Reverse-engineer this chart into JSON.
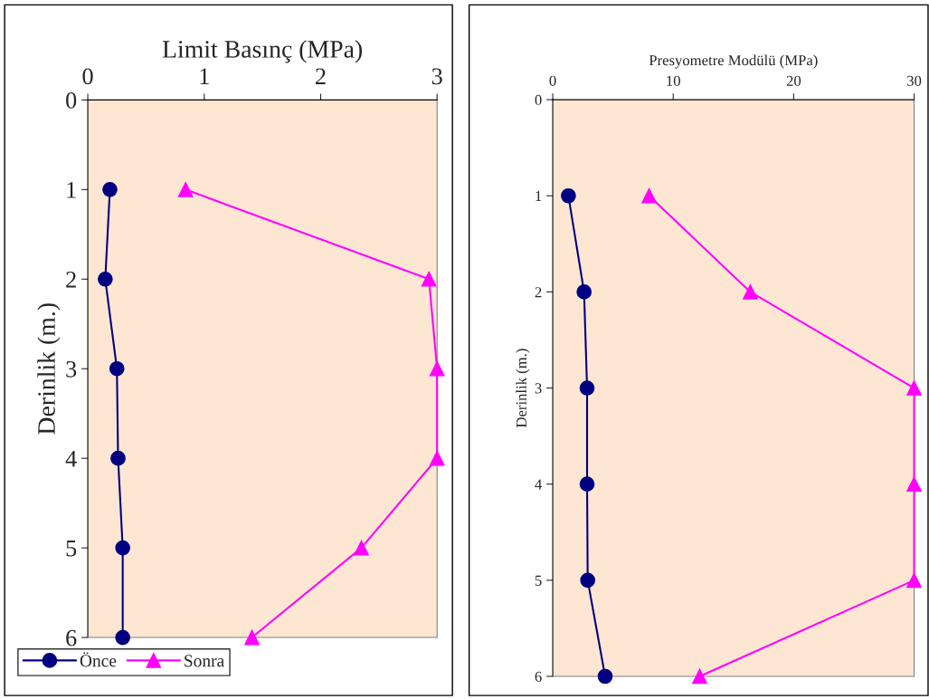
{
  "chart_data": [
    {
      "type": "line",
      "xlabel": "Limit Basınç (MPa)",
      "ylabel": "Derinlik (m.)",
      "xlim": [
        0,
        3
      ],
      "xticks": [
        0,
        1,
        2,
        3
      ],
      "ylim": [
        6,
        0
      ],
      "yticks": [
        0,
        1,
        2,
        3,
        4,
        5,
        6
      ],
      "grid": false,
      "legend": "bottom left",
      "line_style": "solid",
      "series": [
        {
          "name": "Önce",
          "color": "#000080",
          "marker": "circle",
          "x": [
            0.19,
            0.15,
            0.25,
            0.26,
            0.3,
            0.3
          ],
          "values": [
            1,
            2,
            3,
            4,
            5,
            6
          ]
        },
        {
          "name": "Sonra",
          "color": "#ff00ff",
          "marker": "triangle",
          "x": [
            0.84,
            2.93,
            3.0,
            3.0,
            2.35,
            1.41
          ],
          "values": [
            1,
            2,
            3,
            4,
            5,
            6
          ]
        }
      ]
    },
    {
      "type": "line",
      "xlabel": "Presyometre Modülü (MPa)",
      "ylabel": "Derinlik (m.)",
      "xlim": [
        0,
        30
      ],
      "xticks": [
        0,
        10,
        20,
        30
      ],
      "ylim": [
        6,
        0
      ],
      "yticks": [
        0,
        1,
        2,
        3,
        4,
        5,
        6
      ],
      "grid": false,
      "legend": false,
      "line_style": "solid",
      "series": [
        {
          "color": "#000080",
          "marker": "circle",
          "x": [
            1.3,
            2.6,
            2.85,
            2.85,
            2.9,
            4.35
          ],
          "values": [
            1,
            2,
            3,
            4,
            5,
            6
          ]
        },
        {
          "color": "#ff00ff",
          "marker": "triangle",
          "x": [
            8.0,
            16.4,
            30,
            30,
            30,
            12.2
          ],
          "values": [
            1,
            2,
            3,
            4,
            5,
            6
          ]
        }
      ]
    }
  ]
}
